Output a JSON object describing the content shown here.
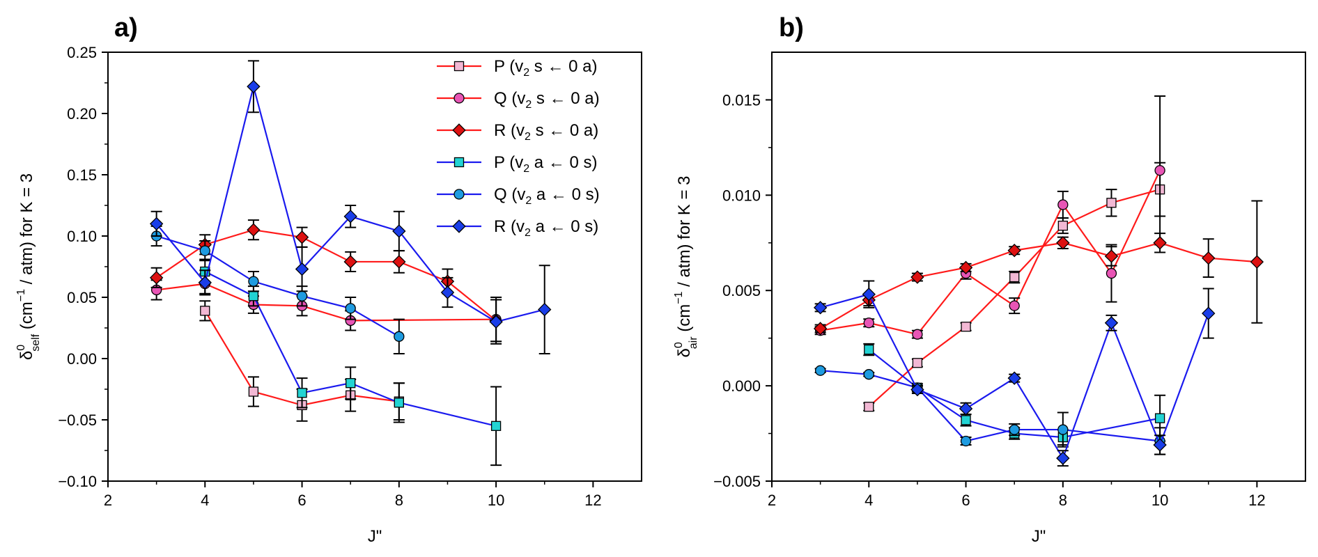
{
  "chart_data": [
    {
      "type": "scatter",
      "panel_label": "a)",
      "ylabel_main": "δ",
      "ylabel_sup": "0",
      "ylabel_sub": "self",
      "ylabel_rest_1": " (cm",
      "ylabel_exp": "−1",
      "ylabel_rest_2": " / atm) for K = 3",
      "xlabel": "J\"",
      "xlim": [
        2,
        13
      ],
      "ylim": [
        -0.1,
        0.25
      ],
      "xticks": [
        2,
        4,
        6,
        8,
        10,
        12
      ],
      "xtick_labels": [
        "2",
        "4",
        "6",
        "8",
        "10",
        "12"
      ],
      "yticks": [
        -0.1,
        -0.05,
        0.0,
        0.05,
        0.1,
        0.15,
        0.2,
        0.25
      ],
      "ytick_labels": [
        "−0.10",
        "−0.05",
        "0.00",
        "0.05",
        "0.10",
        "0.15",
        "0.20",
        "0.25"
      ],
      "grid": false,
      "legend_position": "top-right",
      "series": [
        {
          "name_pre": "P (v",
          "name_sub": "2",
          "name_post": " s ← 0 a)",
          "color": "#ff1a1a",
          "marker": "square",
          "fill": "#f2b8d4",
          "points": [
            [
              4,
              0.039,
              0.008
            ],
            [
              5,
              -0.027,
              0.012
            ],
            [
              6,
              -0.038,
              0.013
            ],
            [
              7,
              -0.03,
              0.013
            ],
            [
              8,
              -0.035,
              0.015
            ]
          ]
        },
        {
          "name_pre": "Q (v",
          "name_sub": "2",
          "name_post": " s ← 0 a)",
          "color": "#ff1a1a",
          "marker": "circle",
          "fill": "#e855b5",
          "points": [
            [
              3,
              0.056,
              0.008
            ],
            [
              4,
              0.061,
              0.008
            ],
            [
              5,
              0.044,
              0.007
            ],
            [
              6,
              0.043,
              0.008
            ],
            [
              7,
              0.031,
              0.008
            ],
            [
              10,
              0.032,
              0.018
            ]
          ]
        },
        {
          "name_pre": "R (v",
          "name_sub": "2",
          "name_post": " s ← 0 a)",
          "color": "#ff1a1a",
          "marker": "diamond",
          "fill": "#dd1111",
          "points": [
            [
              3,
              0.066,
              0.008
            ],
            [
              4,
              0.093,
              0.008
            ],
            [
              5,
              0.105,
              0.008
            ],
            [
              6,
              0.099,
              0.008
            ],
            [
              7,
              0.079,
              0.008
            ],
            [
              8,
              0.079,
              0.009
            ],
            [
              9,
              0.063,
              0.01
            ],
            [
              10,
              0.031,
              0.017
            ]
          ]
        },
        {
          "name_pre": "P (v",
          "name_sub": "2",
          "name_post": " a ← 0 s)",
          "color": "#1a1aee",
          "marker": "square",
          "fill": "#22d3d3",
          "points": [
            [
              4,
              0.071,
              0.01
            ],
            [
              5,
              0.051,
              0.008
            ],
            [
              6,
              -0.028,
              0.012
            ],
            [
              7,
              -0.02,
              0.013
            ],
            [
              8,
              -0.036,
              0.016
            ],
            [
              10,
              -0.055,
              0.032
            ]
          ]
        },
        {
          "name_pre": "Q (v",
          "name_sub": "2",
          "name_post": " a ← 0 s)",
          "color": "#1a1aee",
          "marker": "circle",
          "fill": "#1e9be0",
          "points": [
            [
              3,
              0.1,
              0.008
            ],
            [
              4,
              0.088,
              0.008
            ],
            [
              5,
              0.063,
              0.008
            ],
            [
              6,
              0.051,
              0.008
            ],
            [
              7,
              0.041,
              0.009
            ],
            [
              8,
              0.018,
              0.014
            ]
          ]
        },
        {
          "name_pre": "R (v",
          "name_sub": "2",
          "name_post": " a ← 0 s)",
          "color": "#1a1aee",
          "marker": "diamond",
          "fill": "#1a3ee8",
          "points": [
            [
              3,
              0.11,
              0.01
            ],
            [
              4,
              0.062,
              0.01
            ],
            [
              5,
              0.222,
              0.021
            ],
            [
              6,
              0.073,
              0.018
            ],
            [
              7,
              0.116,
              0.009
            ],
            [
              8,
              0.104,
              0.016
            ],
            [
              9,
              0.054,
              0.012
            ],
            [
              10,
              0.03,
              0.018
            ],
            [
              11,
              0.04,
              0.036
            ]
          ]
        }
      ]
    },
    {
      "type": "scatter",
      "panel_label": "b)",
      "ylabel_main": "δ",
      "ylabel_sup": "0",
      "ylabel_sub": "air",
      "ylabel_rest_1": " (cm",
      "ylabel_exp": "−1",
      "ylabel_rest_2": " / atm) for K = 3",
      "xlabel": "J\"",
      "xlim": [
        2,
        13
      ],
      "ylim": [
        -0.005,
        0.0175
      ],
      "xticks": [
        2,
        4,
        6,
        8,
        10,
        12
      ],
      "xtick_labels": [
        "2",
        "4",
        "6",
        "8",
        "10",
        "12"
      ],
      "yticks": [
        -0.005,
        0.0,
        0.005,
        0.01,
        0.015
      ],
      "ytick_labels": [
        "−0.005",
        "0.000",
        "0.005",
        "0.010",
        "0.015"
      ],
      "grid": false,
      "series": [
        {
          "color": "#ff1a1a",
          "marker": "square",
          "fill": "#f2b8d4",
          "points": [
            [
              4,
              -0.0011,
              0.0002
            ],
            [
              5,
              0.0012,
              0.0002
            ],
            [
              6,
              0.0031,
              0.0002
            ],
            [
              7,
              0.0057,
              0.0003
            ],
            [
              8,
              0.0084,
              0.0004
            ],
            [
              9,
              0.0096,
              0.0007
            ],
            [
              10,
              0.0103,
              0.0014
            ]
          ]
        },
        {
          "color": "#ff1a1a",
          "marker": "circle",
          "fill": "#e855b5",
          "points": [
            [
              3,
              0.0029,
              0.0002
            ],
            [
              4,
              0.0033,
              0.0002
            ],
            [
              5,
              0.0027,
              0.0002
            ],
            [
              6,
              0.0059,
              0.0003
            ],
            [
              7,
              0.0042,
              0.0004
            ],
            [
              8,
              0.0095,
              0.0007
            ],
            [
              9,
              0.0059,
              0.0015
            ],
            [
              10,
              0.0113,
              0.0039
            ]
          ]
        },
        {
          "color": "#ff1a1a",
          "marker": "diamond",
          "fill": "#dd1111",
          "points": [
            [
              3,
              0.003,
              0.0002
            ],
            [
              4,
              0.0045,
              0.0003
            ],
            [
              5,
              0.0057,
              0.0002
            ],
            [
              6,
              0.0062,
              0.0002
            ],
            [
              7,
              0.0071,
              0.0002
            ],
            [
              8,
              0.0075,
              0.0003
            ],
            [
              9,
              0.0068,
              0.0005
            ],
            [
              10,
              0.0075,
              0.0005
            ],
            [
              11,
              0.0067,
              0.001
            ],
            [
              12,
              0.0065,
              0.0032
            ]
          ]
        },
        {
          "color": "#1a1aee",
          "marker": "square",
          "fill": "#22d3d3",
          "points": [
            [
              4,
              0.0019,
              0.0003
            ],
            [
              5,
              -0.0001,
              0.0002
            ],
            [
              6,
              -0.0018,
              0.0003
            ],
            [
              7,
              -0.0025,
              0.0003
            ],
            [
              8,
              -0.0027,
              0.0004
            ],
            [
              10,
              -0.0017,
              0.0012
            ]
          ]
        },
        {
          "color": "#1a1aee",
          "marker": "circle",
          "fill": "#1e9be0",
          "points": [
            [
              3,
              0.0008,
              0.0001
            ],
            [
              4,
              0.0006,
              0.0001
            ],
            [
              5,
              -0.0001,
              0.0001
            ],
            [
              6,
              -0.0029,
              0.0002
            ],
            [
              7,
              -0.0023,
              0.0003
            ],
            [
              8,
              -0.0023,
              0.0009
            ],
            [
              10,
              -0.0029,
              0.0007
            ]
          ]
        },
        {
          "color": "#1a1aee",
          "marker": "diamond",
          "fill": "#1a3ee8",
          "points": [
            [
              3,
              0.0041,
              0.0002
            ],
            [
              4,
              0.0048,
              0.0007
            ],
            [
              5,
              -0.0002,
              0.0002
            ],
            [
              6,
              -0.0012,
              0.0003
            ],
            [
              7,
              0.0004,
              0.0002
            ],
            [
              8,
              -0.0038,
              0.0004
            ],
            [
              9,
              0.0033,
              0.0004
            ],
            [
              10,
              -0.0031,
              0.0005
            ],
            [
              11,
              0.0038,
              0.0013
            ]
          ]
        }
      ]
    }
  ]
}
